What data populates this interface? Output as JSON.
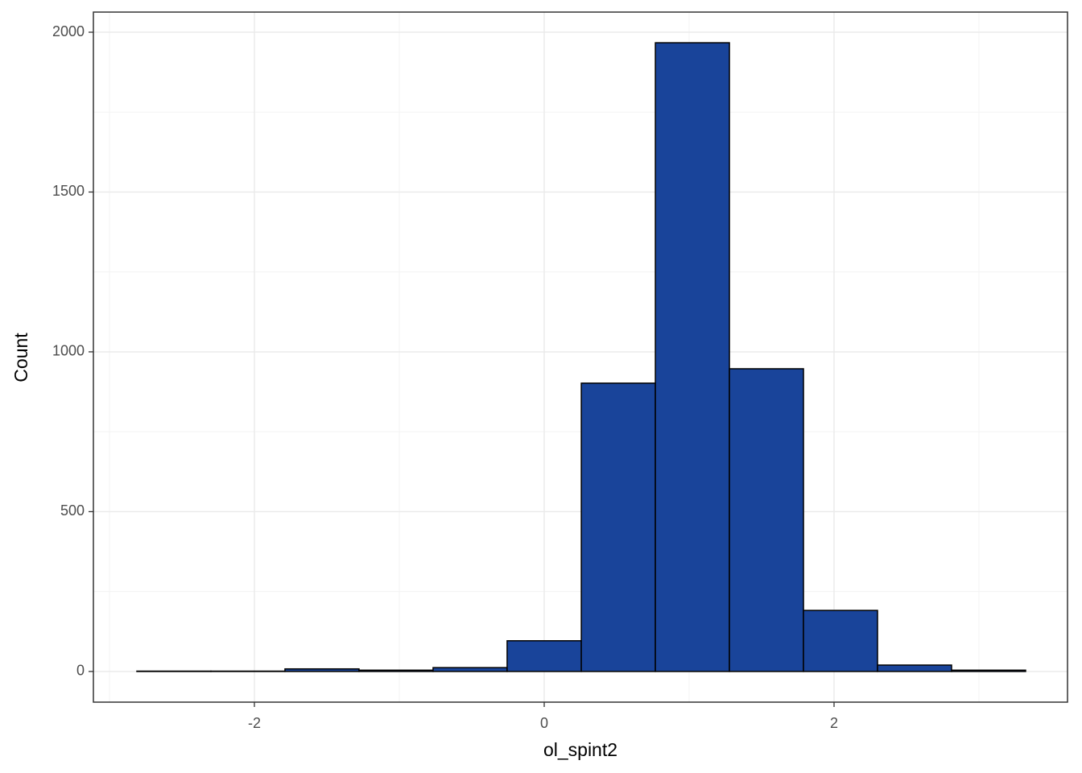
{
  "chart_data": {
    "type": "histogram",
    "xlabel": "ol_spint2",
    "ylabel": "Count",
    "bins": [
      -2.811,
      -2.3,
      -1.789,
      -1.278,
      -0.767,
      -0.256,
      0.256,
      0.767,
      1.278,
      1.789,
      2.3,
      2.811,
      3.322
    ],
    "counts": [
      1,
      1,
      8,
      4,
      12,
      96,
      902,
      1967,
      947,
      191,
      20,
      4
    ],
    "color": "#19449a",
    "edgecolor": "#000000",
    "xlim": [
      -3.111,
      3.611
    ],
    "xticks": [
      -2,
      0,
      2
    ],
    "x_minor_ticks": [
      -3,
      -1,
      1,
      3
    ],
    "ylim": [
      -96,
      2063
    ],
    "yticks": [
      0,
      500,
      1000,
      1500,
      2000
    ],
    "y_minor_ticks": [
      250,
      750,
      1250,
      1750
    ],
    "grid": true
  }
}
